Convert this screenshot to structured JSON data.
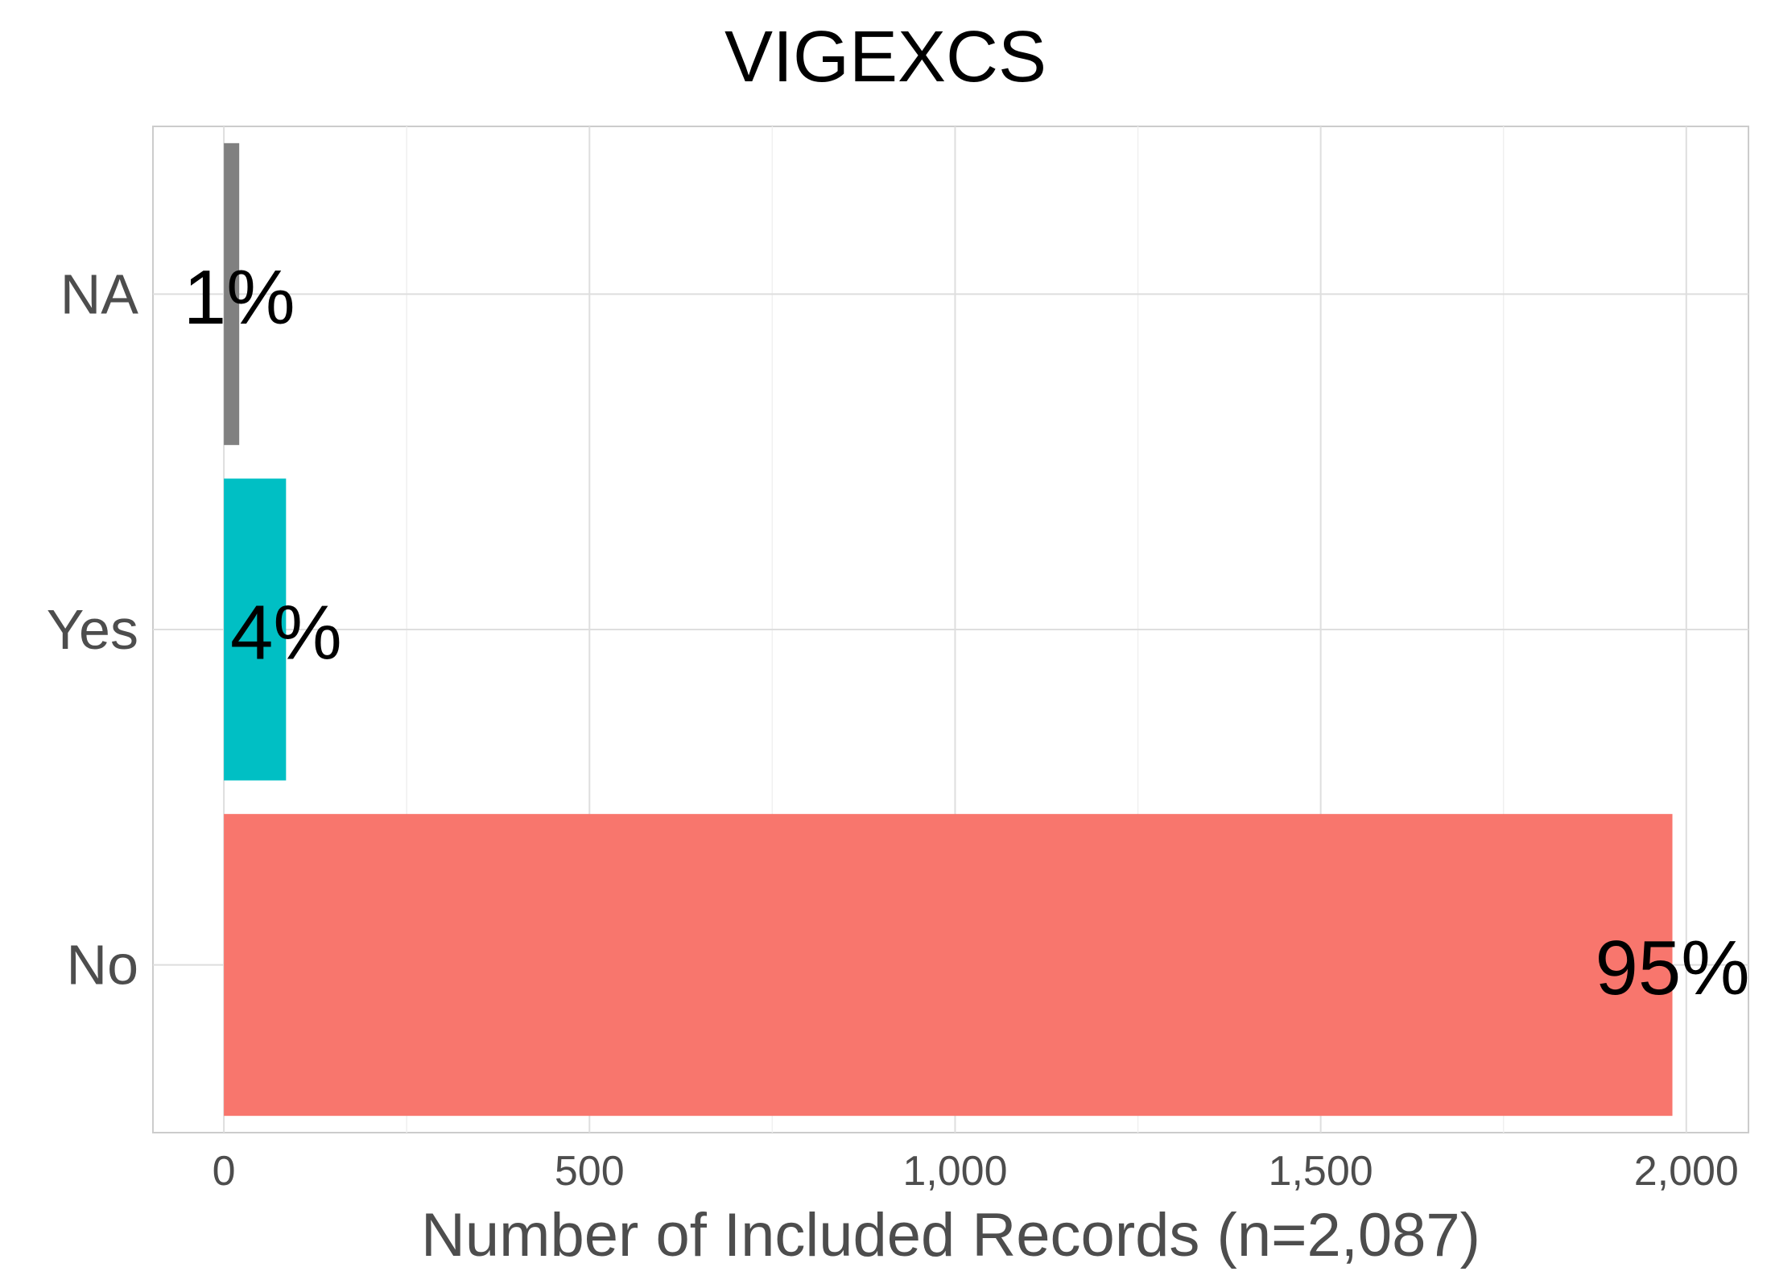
{
  "chart_data": {
    "type": "bar",
    "orientation": "horizontal",
    "title": "VIGEXCS",
    "xlabel": "Number of Included Records (n=2,087)",
    "ylabel": "",
    "categories": [
      "No",
      "Yes",
      "NA"
    ],
    "values": [
      1981,
      85,
      21
    ],
    "data_labels": [
      "95%",
      "4%",
      "1%"
    ],
    "colors": [
      "#F8766D",
      "#00BFC4",
      "#808080"
    ],
    "xlim": [
      -97,
      2085
    ],
    "x_ticks": [
      0,
      500,
      1000,
      1500,
      2000
    ],
    "x_tick_labels": [
      "0",
      "500",
      "1,000",
      "1,500",
      "2,000"
    ],
    "grid": true,
    "legend": "none"
  }
}
